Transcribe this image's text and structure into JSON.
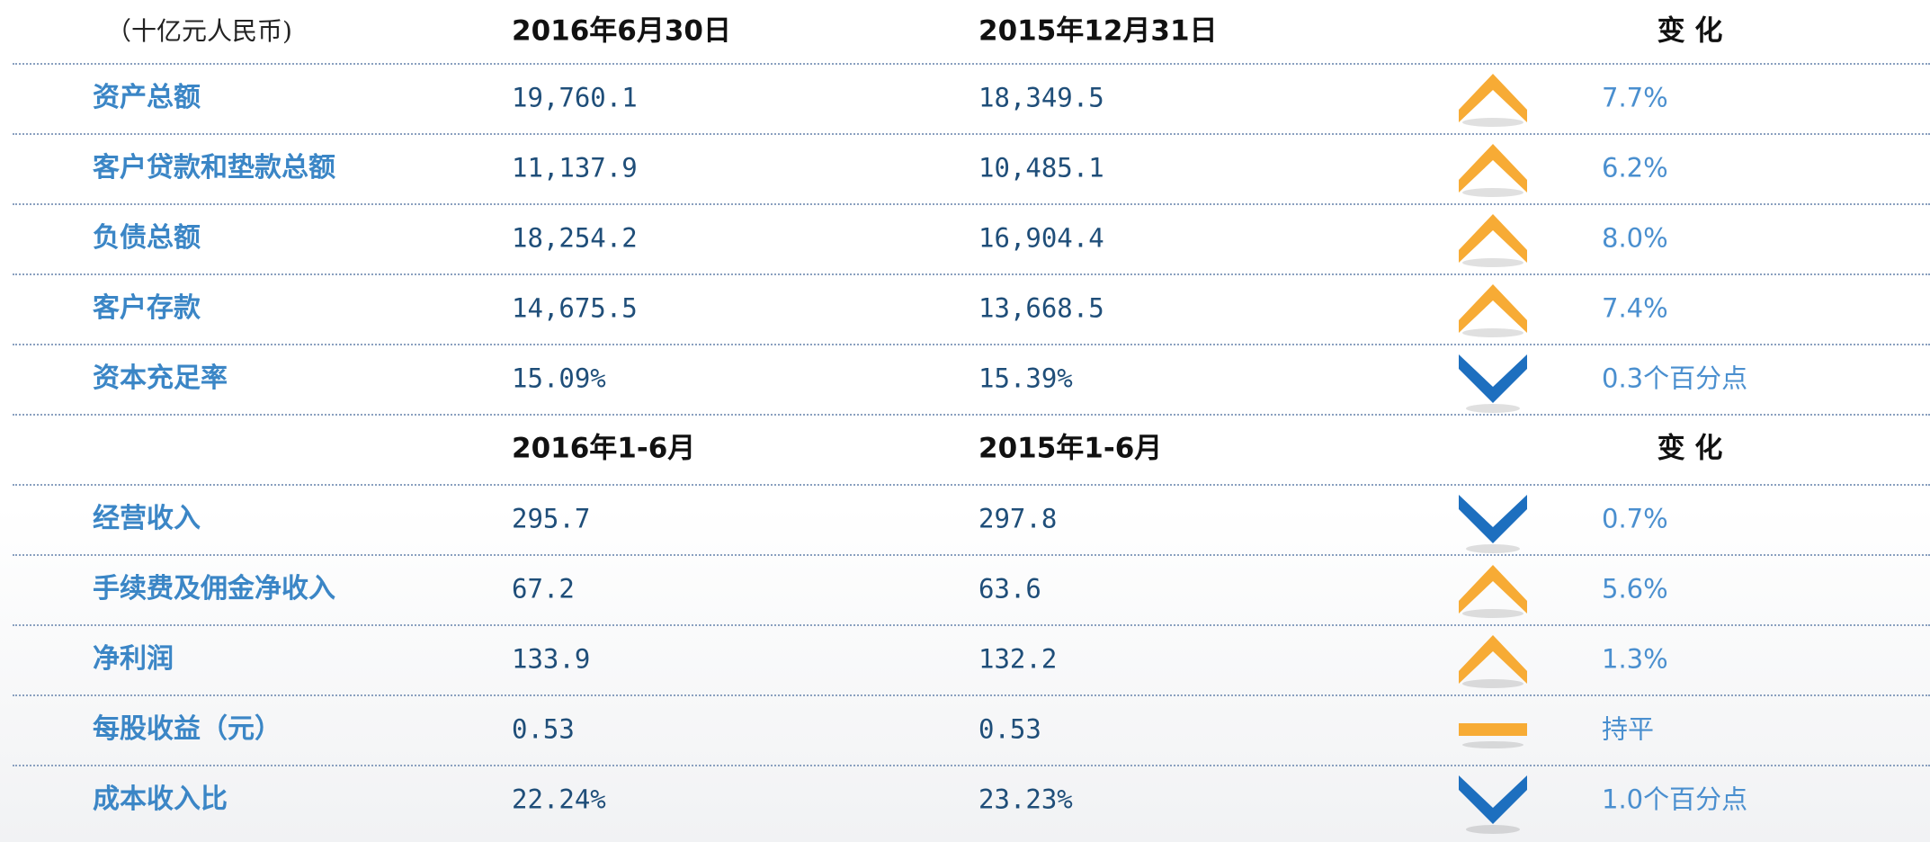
{
  "sections": [
    {
      "unit": "（十亿元人民币)",
      "headers": [
        "2016年6月30日",
        "2015年12月31日",
        "变 化"
      ],
      "rows": [
        {
          "label": "资产总额",
          "current": "19,760.1",
          "previous": "18,349.5",
          "trend": "up",
          "change": "7.7%"
        },
        {
          "label": "客户贷款和垫款总额",
          "current": "11,137.9",
          "previous": "10,485.1",
          "trend": "up",
          "change": "6.2%"
        },
        {
          "label": "负债总额",
          "current": "18,254.2",
          "previous": "16,904.4",
          "trend": "up",
          "change": "8.0%"
        },
        {
          "label": "客户存款",
          "current": "14,675.5",
          "previous": "13,668.5",
          "trend": "up",
          "change": "7.4%"
        },
        {
          "label": "资本充足率",
          "current": "15.09%",
          "previous": "15.39%",
          "trend": "down",
          "change": "0.3个百分点"
        }
      ]
    },
    {
      "headers": [
        "2016年1-6月",
        "2015年1-6月",
        "变 化"
      ],
      "rows": [
        {
          "label": "经营收入",
          "current": "295.7",
          "previous": "297.8",
          "trend": "down",
          "change": "0.7%"
        },
        {
          "label": "手续费及佣金净收入",
          "current": "67.2",
          "previous": "63.6",
          "trend": "up",
          "change": "5.6%"
        },
        {
          "label": "净利润",
          "current": "133.9",
          "previous": "132.2",
          "trend": "up",
          "change": "1.3%"
        },
        {
          "label": "每股收益（元）",
          "current": "0.53",
          "previous": "0.53",
          "trend": "flat",
          "change": "持平"
        },
        {
          "label": "成本收入比",
          "current": "22.24%",
          "previous": "23.23%",
          "trend": "down",
          "change": "1.0个百分点"
        }
      ]
    }
  ]
}
